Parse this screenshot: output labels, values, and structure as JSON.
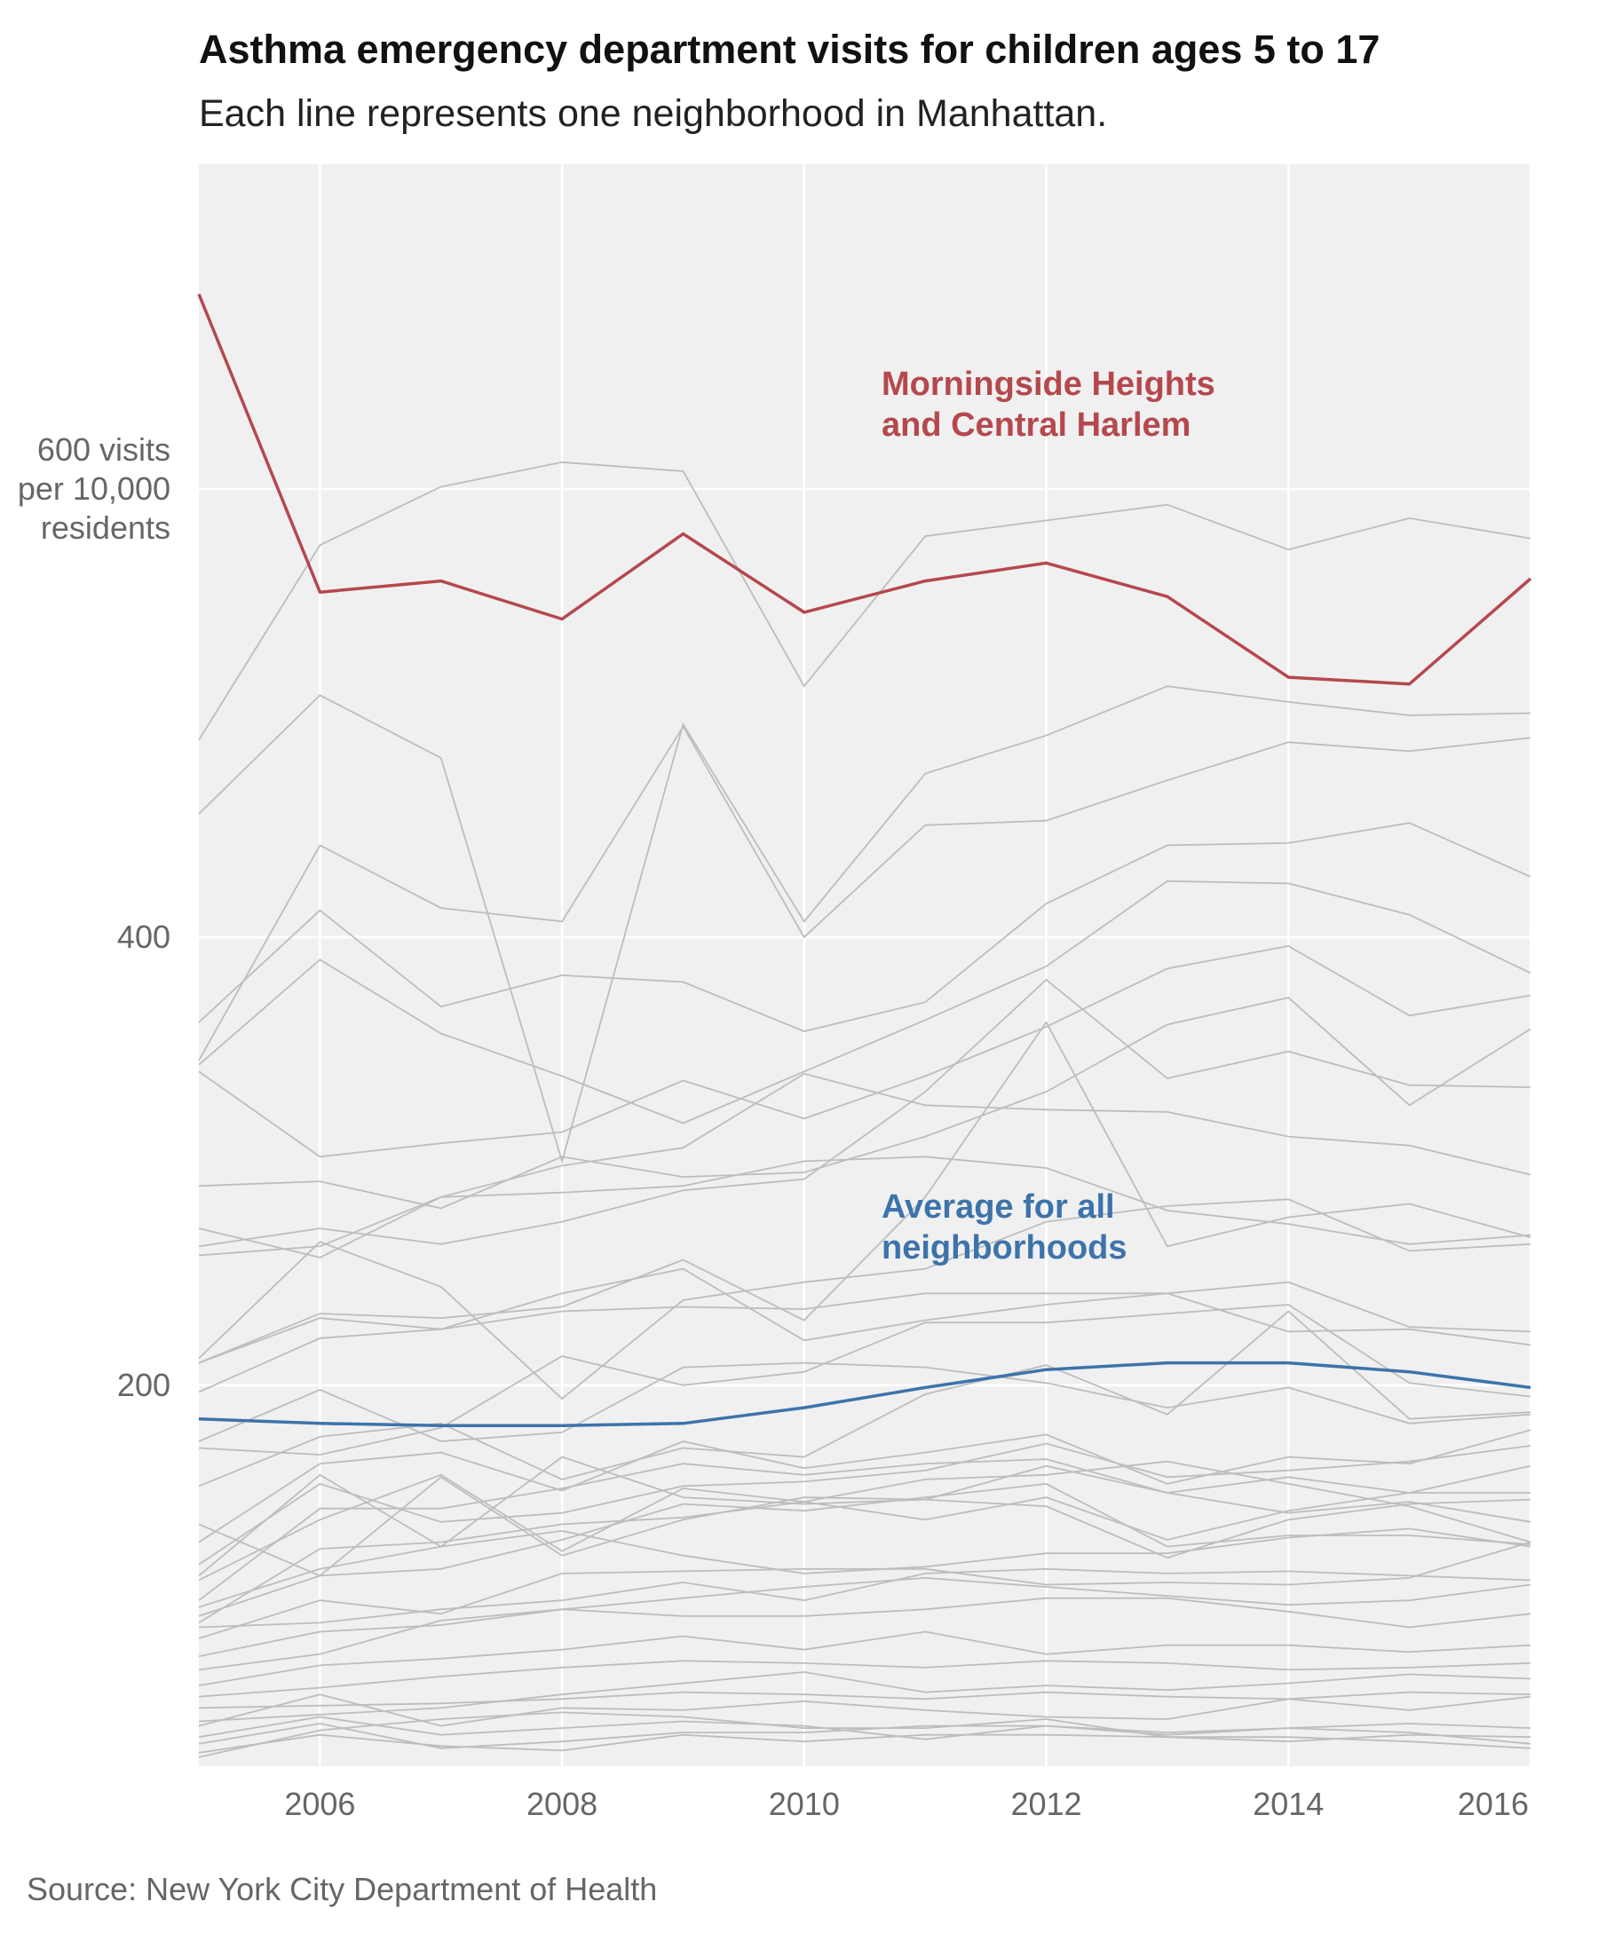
{
  "title": "Asthma emergency department visits for children ages 5 to 17",
  "subtitle": "Each line represents one neighborhood in Manhattan.",
  "source": "Source: New York City Department of Health",
  "colors": {
    "highlight": "#b5484d",
    "average": "#3d73ab",
    "background_lines": "#bdbdbd",
    "panel": "#f0f0f0"
  },
  "chart_data": {
    "type": "line",
    "x": [
      2005,
      2006,
      2007,
      2008,
      2009,
      2010,
      2011,
      2012,
      2013,
      2014,
      2015,
      2016
    ],
    "xlim": [
      2005,
      2016
    ],
    "ylim": [
      30,
      745
    ],
    "xticks": [
      {
        "value": 2006,
        "label": "2006"
      },
      {
        "value": 2008,
        "label": "2008"
      },
      {
        "value": 2010,
        "label": "2010"
      },
      {
        "value": 2012,
        "label": "2012"
      },
      {
        "value": 2014,
        "label": "2014"
      },
      {
        "value": 2016,
        "label": "2016"
      }
    ],
    "yticks": [
      {
        "value": 200,
        "lines": [
          "200"
        ]
      },
      {
        "value": 400,
        "lines": [
          "400"
        ]
      },
      {
        "value": 600,
        "lines": [
          "600 visits",
          "per 10,000",
          "residents"
        ]
      }
    ],
    "highlight": {
      "label_lines": [
        "Morningside Heights",
        "and Central Harlem"
      ],
      "values": [
        687,
        554,
        559,
        542,
        580,
        545,
        559,
        567,
        552,
        516,
        513,
        560
      ]
    },
    "average": {
      "label_lines": [
        "Average for all",
        "neighborhoods"
      ],
      "values": [
        185,
        183,
        182,
        182,
        183,
        190,
        199,
        207,
        210,
        210,
        206,
        199
      ]
    },
    "series": [
      {
        "values": [
          488,
          575,
          601,
          612,
          608,
          512,
          579,
          586,
          593,
          573,
          587,
          578
        ]
      },
      {
        "values": [
          455,
          508,
          480,
          300,
          495,
          407,
          473,
          490,
          512,
          505,
          499,
          500
        ]
      },
      {
        "values": [
          345,
          441,
          413,
          407,
          494,
          400,
          450,
          452,
          470,
          487,
          483,
          489
        ]
      },
      {
        "values": [
          362,
          412,
          369,
          383,
          380,
          358,
          371,
          415,
          441,
          442,
          451,
          427
        ]
      },
      {
        "values": [
          343,
          390,
          357,
          338,
          317,
          340,
          363,
          387,
          425,
          424,
          410,
          384
        ]
      },
      {
        "values": [
          340,
          302,
          308,
          313,
          336,
          319,
          338,
          360,
          386,
          396,
          365,
          374
        ]
      },
      {
        "values": [
          289,
          291,
          279,
          302,
          293,
          295,
          311,
          331,
          361,
          373,
          325,
          359
        ]
      },
      {
        "values": [
          262,
          270,
          263,
          273,
          287,
          292,
          331,
          381,
          337,
          349,
          334,
          333
        ]
      },
      {
        "values": [
          270,
          257,
          284,
          298,
          306,
          339,
          325,
          323,
          322,
          311,
          307,
          294
        ]
      },
      {
        "values": [
          258,
          262,
          284,
          286,
          289,
          300,
          302,
          297,
          278,
          272,
          263,
          267
        ]
      },
      {
        "values": [
          210,
          232,
          230,
          235,
          256,
          229,
          284,
          362,
          262,
          275,
          281,
          266
        ]
      },
      {
        "values": [
          212,
          264,
          244,
          194,
          238,
          246,
          252,
          273,
          280,
          283,
          260,
          263
        ]
      },
      {
        "values": [
          210,
          230,
          225,
          241,
          252,
          220,
          229,
          236,
          241,
          246,
          226,
          224
        ]
      },
      {
        "values": [
          197,
          221,
          225,
          233,
          235,
          234,
          241,
          241,
          241,
          224,
          225,
          218
        ]
      },
      {
        "values": [
          175,
          198,
          175,
          179,
          208,
          210,
          208,
          201,
          190,
          199,
          183,
          187
        ]
      },
      {
        "values": [
          172,
          169,
          181,
          213,
          200,
          206,
          228,
          228,
          232,
          236,
          201,
          195
        ]
      },
      {
        "values": [
          155,
          177,
          183,
          158,
          172,
          168,
          196,
          209,
          187,
          233,
          185,
          188
        ]
      },
      {
        "values": [
          130,
          165,
          170,
          153,
          175,
          163,
          170,
          178,
          156,
          168,
          165,
          180
        ]
      },
      {
        "values": [
          120,
          156,
          139,
          143,
          155,
          157,
          162,
          174,
          159,
          162,
          166,
          173
        ]
      },
      {
        "values": [
          115,
          160,
          128,
          168,
          150,
          147,
          149,
          164,
          152,
          159,
          152,
          164
        ]
      },
      {
        "values": [
          113,
          140,
          160,
          126,
          154,
          148,
          140,
          150,
          131,
          144,
          152,
          152
        ]
      },
      {
        "values": [
          138,
          115,
          159,
          124,
          140,
          150,
          149,
          146,
          123,
          140,
          147,
          149
        ]
      },
      {
        "values": [
          104,
          145,
          145,
          154,
          165,
          160,
          165,
          167,
          152,
          143,
          148,
          139
        ]
      },
      {
        "values": [
          94,
          127,
          130,
          138,
          141,
          148,
          158,
          160,
          166,
          156,
          146,
          130
        ]
      },
      {
        "values": [
          97,
          115,
          118,
          131,
          147,
          144,
          150,
          156,
          128,
          133,
          133,
          129
        ]
      },
      {
        "values": [
          101,
          118,
          128,
          135,
          124,
          116,
          119,
          125,
          125,
          132,
          136,
          128
        ]
      },
      {
        "values": [
          87,
          104,
          98,
          116,
          117,
          118,
          118,
          111,
          112,
          111,
          114,
          130
        ]
      },
      {
        "values": [
          92,
          94,
          100,
          104,
          112,
          104,
          116,
          118,
          116,
          117,
          115,
          113
        ]
      },
      {
        "values": [
          79,
          90,
          93,
          100,
          105,
          110,
          114,
          110,
          106,
          102,
          104,
          111
        ]
      },
      {
        "values": [
          73,
          80,
          95,
          100,
          97,
          97,
          100,
          105,
          105,
          99,
          92,
          98
        ]
      },
      {
        "values": [
          66,
          75,
          78,
          82,
          88,
          82,
          90,
          80,
          84,
          84,
          81,
          84
        ]
      },
      {
        "values": [
          61,
          65,
          70,
          74,
          77,
          76,
          74,
          77,
          76,
          73,
          74,
          76
        ]
      },
      {
        "values": [
          56,
          57,
          58,
          60,
          63,
          62,
          60,
          63,
          61,
          60,
          63,
          62
        ]
      },
      {
        "values": [
          50,
          53,
          56,
          62,
          67,
          72,
          63,
          66,
          64,
          67,
          71,
          69
        ]
      },
      {
        "values": [
          48,
          62,
          48,
          56,
          55,
          59,
          55,
          52,
          51,
          60,
          55,
          61
        ]
      },
      {
        "values": [
          43,
          52,
          44,
          47,
          50,
          48,
          42,
          48,
          45,
          47,
          49,
          47
        ]
      },
      {
        "values": [
          40,
          49,
          38,
          41,
          45,
          45,
          48,
          48,
          44,
          47,
          45,
          40
        ]
      },
      {
        "values": [
          36,
          44,
          39,
          37,
          44,
          41,
          44,
          44,
          43,
          43,
          41,
          38
        ]
      },
      {
        "values": [
          34,
          46,
          51,
          54,
          52,
          47,
          47,
          51,
          43,
          41,
          44,
          43
        ]
      }
    ]
  }
}
